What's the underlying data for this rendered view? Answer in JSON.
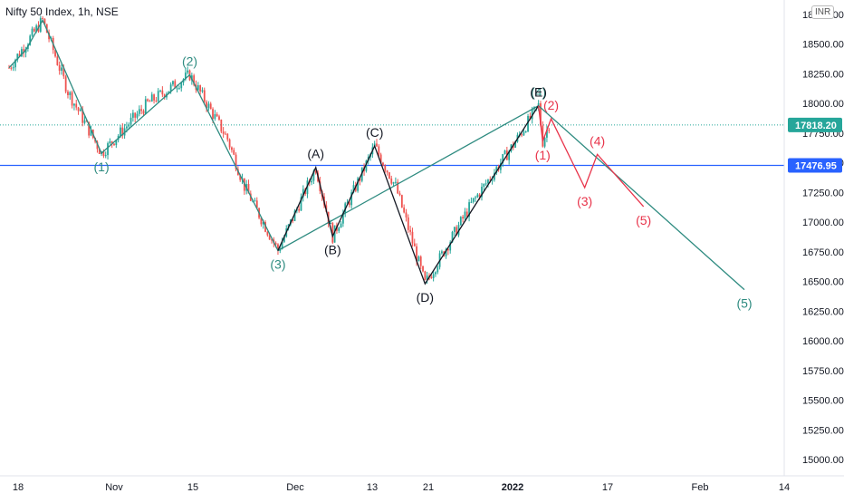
{
  "header": {
    "title": "Nifty 50 Index, 1h, NSE",
    "currency": "INR"
  },
  "colors": {
    "up": "#26a69a",
    "down": "#ef5350",
    "wave_green": "#2e8b80",
    "wave_black": "#131722",
    "wave_red": "#e8334a",
    "hline": "#2962ff",
    "price_line": "#26a69a"
  },
  "chart_data": {
    "type": "candlestick",
    "title": "Nifty 50 Index, 1h, NSE",
    "ylim": [
      14900,
      19000
    ],
    "y_ticks": [
      "15000.00",
      "15250.00",
      "15500.00",
      "15750.00",
      "16000.00",
      "16250.00",
      "16500.00",
      "16750.00",
      "17000.00",
      "17250.00",
      "17500.00",
      "17750.00",
      "18000.00",
      "18250.00",
      "18500.00",
      "18750.00"
    ],
    "x_ticks": [
      "18",
      "Nov",
      "15",
      "Dec",
      "13",
      "21",
      "2022",
      "17",
      "Feb",
      "14"
    ],
    "grid": false,
    "price_labels": [
      {
        "value": 17818.2,
        "text": "17818.20",
        "kind": "last-price"
      },
      {
        "value": 17476.95,
        "text": "17476.95",
        "kind": "horizontal-line"
      }
    ],
    "series": [
      {
        "points": [
          {
            "label": "",
            "x": 0,
            "y": 18300
          },
          {
            "label": "",
            "x": 4,
            "y": 18450
          },
          {
            "label": "",
            "x": 8,
            "y": 18700
          },
          {
            "label": "(1)",
            "x": 22,
            "y": 17580
          },
          {
            "label": "(2)",
            "x": 43,
            "y": 18240
          },
          {
            "label": "(3)",
            "x": 64,
            "y": 16760
          },
          {
            "label": "(4)",
            "x": 126,
            "y": 17980
          },
          {
            "label": "(5)",
            "x": 175,
            "y": 16430
          }
        ]
      },
      {
        "points": [
          {
            "label": "",
            "x": 64,
            "y": 16760
          },
          {
            "label": "(A)",
            "x": 73,
            "y": 17460
          },
          {
            "label": "(B)",
            "x": 77,
            "y": 16880
          },
          {
            "label": "(C)",
            "x": 87,
            "y": 17640
          },
          {
            "label": "(D)",
            "x": 99,
            "y": 16480
          },
          {
            "label": "(E)",
            "x": 126,
            "y": 17980
          }
        ]
      },
      {
        "points": [
          {
            "label": "",
            "x": 126,
            "y": 17980
          },
          {
            "label": "(1)",
            "x": 127,
            "y": 17680
          },
          {
            "label": "(2)",
            "x": 129,
            "y": 17870
          },
          {
            "label": "(3)",
            "x": 137,
            "y": 17290
          },
          {
            "label": "(4)",
            "x": 140,
            "y": 17570
          },
          {
            "label": "(5)",
            "x": 151,
            "y": 17130
          }
        ]
      }
    ],
    "candles_anchor_path": [
      [
        0,
        18300
      ],
      [
        8,
        18700
      ],
      [
        14,
        18100
      ],
      [
        22,
        17580
      ],
      [
        33,
        18000
      ],
      [
        43,
        18240
      ],
      [
        52,
        17700
      ],
      [
        56,
        17300
      ],
      [
        64,
        16760
      ],
      [
        73,
        17460
      ],
      [
        77,
        16880
      ],
      [
        87,
        17640
      ],
      [
        92,
        17300
      ],
      [
        99,
        16480
      ],
      [
        110,
        17150
      ],
      [
        120,
        17650
      ],
      [
        126,
        17980
      ],
      [
        127,
        17680
      ],
      [
        129,
        17870
      ]
    ]
  }
}
